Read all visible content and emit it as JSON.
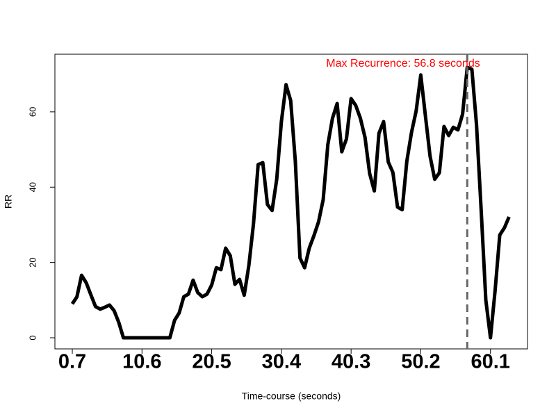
{
  "chart_data": {
    "type": "line",
    "xlabel": "Time-course (seconds)",
    "ylabel": "RR",
    "annotation": "Max Recurrence: 56.8 seconds",
    "annotation_color": "#ff0000",
    "vline": 56.8,
    "vline_color": "#666666",
    "x": [
      0.7,
      1.36,
      2.02,
      2.68,
      3.34,
      4.0,
      4.66,
      5.32,
      5.98,
      6.64,
      7.3,
      7.96,
      8.62,
      9.28,
      9.94,
      10.6,
      11.26,
      11.92,
      12.58,
      13.24,
      13.9,
      14.56,
      15.22,
      15.88,
      16.54,
      17.2,
      17.86,
      18.52,
      19.18,
      19.84,
      20.5,
      21.16,
      21.82,
      22.48,
      23.14,
      23.8,
      24.46,
      25.12,
      25.78,
      26.44,
      27.1,
      27.76,
      28.42,
      29.08,
      29.74,
      30.4,
      31.06,
      31.72,
      32.38,
      33.04,
      33.7,
      34.36,
      35.02,
      35.68,
      36.34,
      37.0,
      37.66,
      38.32,
      38.98,
      39.64,
      40.3,
      40.96,
      41.62,
      42.28,
      42.94,
      43.6,
      44.26,
      44.92,
      45.58,
      46.24,
      46.9,
      47.56,
      48.22,
      48.88,
      49.54,
      50.2,
      50.86,
      51.52,
      52.18,
      52.84,
      53.5,
      54.16,
      54.82,
      55.48,
      56.14,
      56.8,
      57.46,
      58.12,
      58.78,
      59.44,
      60.1,
      60.76,
      61.42,
      62.08,
      62.74
    ],
    "values": [
      9,
      10.9,
      16.6,
      14.6,
      11.4,
      8.3,
      7.6,
      8.1,
      8.7,
      7.2,
      4.1,
      0,
      0,
      0,
      0,
      0,
      0,
      0,
      0,
      0,
      0,
      0,
      4.6,
      6.6,
      10.9,
      11.6,
      15.3,
      12,
      10.9,
      11.6,
      14,
      18.6,
      18.1,
      23.8,
      21.8,
      14.2,
      15.5,
      11.3,
      19.2,
      30.3,
      46,
      46.5,
      35.4,
      33.8,
      42.1,
      57.4,
      67.2,
      63,
      46.9,
      21.2,
      18.6,
      23.8,
      27.1,
      30.8,
      36.7,
      51.3,
      58.3,
      62.2,
      49.4,
      52.8,
      63.5,
      61.7,
      58.3,
      53.2,
      43.6,
      39,
      54.3,
      57.4,
      46.7,
      43.9,
      34.7,
      34,
      46.9,
      54.5,
      60.2,
      69.8,
      58.9,
      48.2,
      42.1,
      43.8,
      56.1,
      53.7,
      55.9,
      55.2,
      59.4,
      71.8,
      71.3,
      56.5,
      33.8,
      10,
      0,
      12.6,
      27.3,
      29.2,
      32.1
    ],
    "color": "#000000",
    "xlim": [
      -1.77,
      65.36
    ],
    "ylim": [
      -2.95,
      75.3
    ],
    "xticks": [
      0.7,
      10.6,
      20.5,
      30.4,
      40.3,
      50.2,
      60.1
    ],
    "yticks": [
      0,
      20,
      40,
      60
    ]
  }
}
